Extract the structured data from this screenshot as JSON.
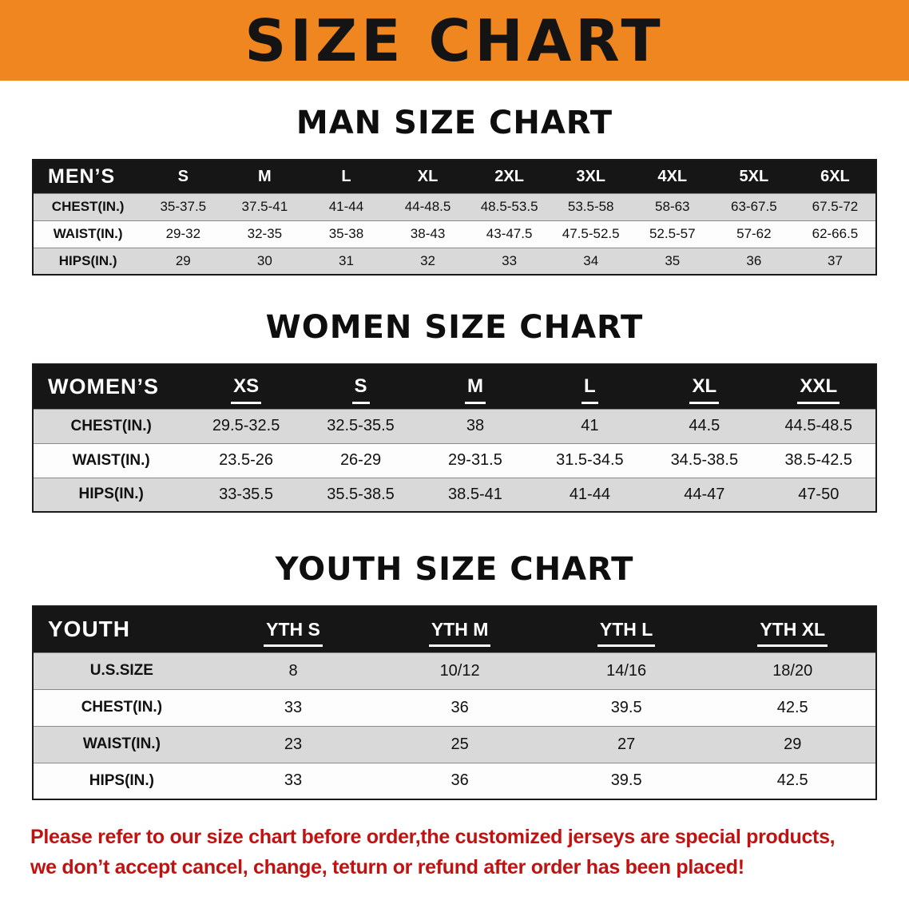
{
  "banner": {
    "title": "SIZE CHART"
  },
  "colors": {
    "banner_orange": "#f0861f",
    "table_header_black": "#161616",
    "row_stripe_gray": "#d9d9d9",
    "disclaimer_red": "#c11212"
  },
  "sections": [
    {
      "name": "mens",
      "heading": "MAN SIZE CHART",
      "header": [
        "MEN’S",
        "S",
        "M",
        "L",
        "XL",
        "2XL",
        "3XL",
        "4XL",
        "5XL",
        "6XL"
      ],
      "rows": [
        [
          "CHEST(IN.)",
          "35-37.5",
          "37.5-41",
          "41-44",
          "44-48.5",
          "48.5-53.5",
          "53.5-58",
          "58-63",
          "63-67.5",
          "67.5-72"
        ],
        [
          "WAIST(IN.)",
          "29-32",
          "32-35",
          "35-38",
          "38-43",
          "43-47.5",
          "47.5-52.5",
          "52.5-57",
          "57-62",
          "62-66.5"
        ],
        [
          "HIPS(IN.)",
          "29",
          "30",
          "31",
          "32",
          "33",
          "34",
          "35",
          "36",
          "37"
        ]
      ]
    },
    {
      "name": "womens",
      "heading": "WOMEN SIZE CHART",
      "header": [
        "WOMEN’S",
        "XS",
        "S",
        "M",
        "L",
        "XL",
        "XXL"
      ],
      "rows": [
        [
          "CHEST(IN.)",
          "29.5-32.5",
          "32.5-35.5",
          "38",
          "41",
          "44.5",
          "44.5-48.5"
        ],
        [
          "WAIST(IN.)",
          "23.5-26",
          "26-29",
          "29-31.5",
          "31.5-34.5",
          "34.5-38.5",
          "38.5-42.5"
        ],
        [
          "HIPS(IN.)",
          "33-35.5",
          "35.5-38.5",
          "38.5-41",
          "41-44",
          "44-47",
          "47-50"
        ]
      ]
    },
    {
      "name": "youth",
      "heading": "YOUTH SIZE CHART",
      "header": [
        "YOUTH",
        "YTH S",
        "YTH M",
        "YTH L",
        "YTH XL"
      ],
      "rows": [
        [
          "U.S.SIZE",
          "8",
          "10/12",
          "14/16",
          "18/20"
        ],
        [
          "CHEST(IN.)",
          "33",
          "36",
          "39.5",
          "42.5"
        ],
        [
          "WAIST(IN.)",
          "23",
          "25",
          "27",
          "29"
        ],
        [
          "HIPS(IN.)",
          "33",
          "36",
          "39.5",
          "42.5"
        ]
      ]
    }
  ],
  "disclaimer": {
    "line1": "Please refer to our size chart before order,the customized jerseys are special products,",
    "line2": "we don’t accept cancel, change, teturn or refund after order has been placed!"
  }
}
